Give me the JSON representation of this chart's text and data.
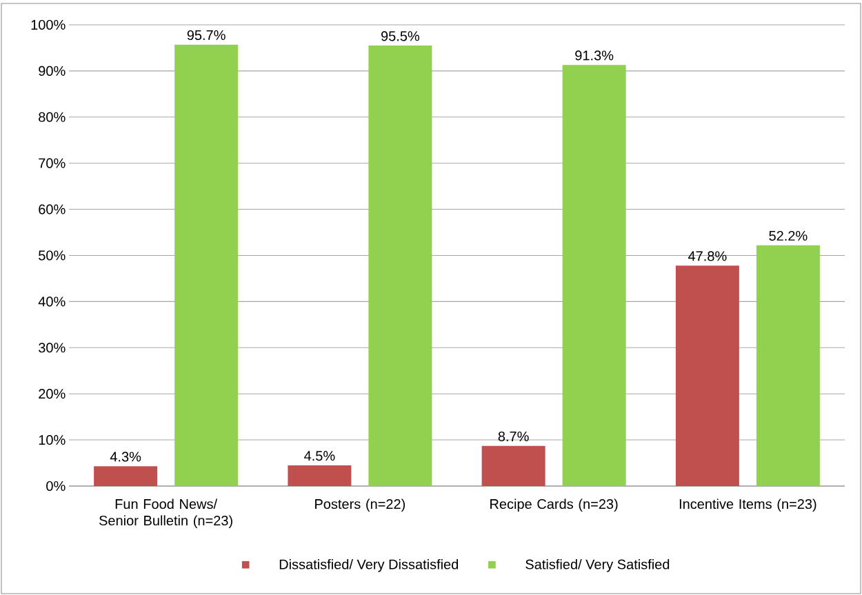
{
  "chart_data": {
    "type": "bar",
    "categories": [
      "Fun Food News/ Senior Bulletin (n=23)",
      "Posters (n=22)",
      "Recipe Cards (n=23)",
      "Incentive Items (n=23)"
    ],
    "series": [
      {
        "name": "Dissatisfied/ Very Dissatisfied",
        "color": "#c0504d",
        "values": [
          4.3,
          4.5,
          8.7,
          47.8
        ],
        "value_labels": [
          "4.3%",
          "4.5%",
          "8.7%",
          "47.8%"
        ]
      },
      {
        "name": "Satisfied/ Very Satisfied",
        "color": "#92d050",
        "values": [
          95.7,
          95.5,
          91.3,
          52.2
        ],
        "value_labels": [
          "95.7%",
          "95.5%",
          "91.3%",
          "52.2%"
        ]
      }
    ],
    "ylim": [
      0,
      100
    ],
    "yticks": [
      {
        "value": 0,
        "label": "0%"
      },
      {
        "value": 10,
        "label": "10%"
      },
      {
        "value": 20,
        "label": "20%"
      },
      {
        "value": 30,
        "label": "30%"
      },
      {
        "value": 40,
        "label": "40%"
      },
      {
        "value": 50,
        "label": "50%"
      },
      {
        "value": 60,
        "label": "60%"
      },
      {
        "value": 70,
        "label": "70%"
      },
      {
        "value": 80,
        "label": "80%"
      },
      {
        "value": 90,
        "label": "90%"
      },
      {
        "value": 100,
        "label": "100%"
      }
    ],
    "grid": "y",
    "legend": "bottom"
  }
}
